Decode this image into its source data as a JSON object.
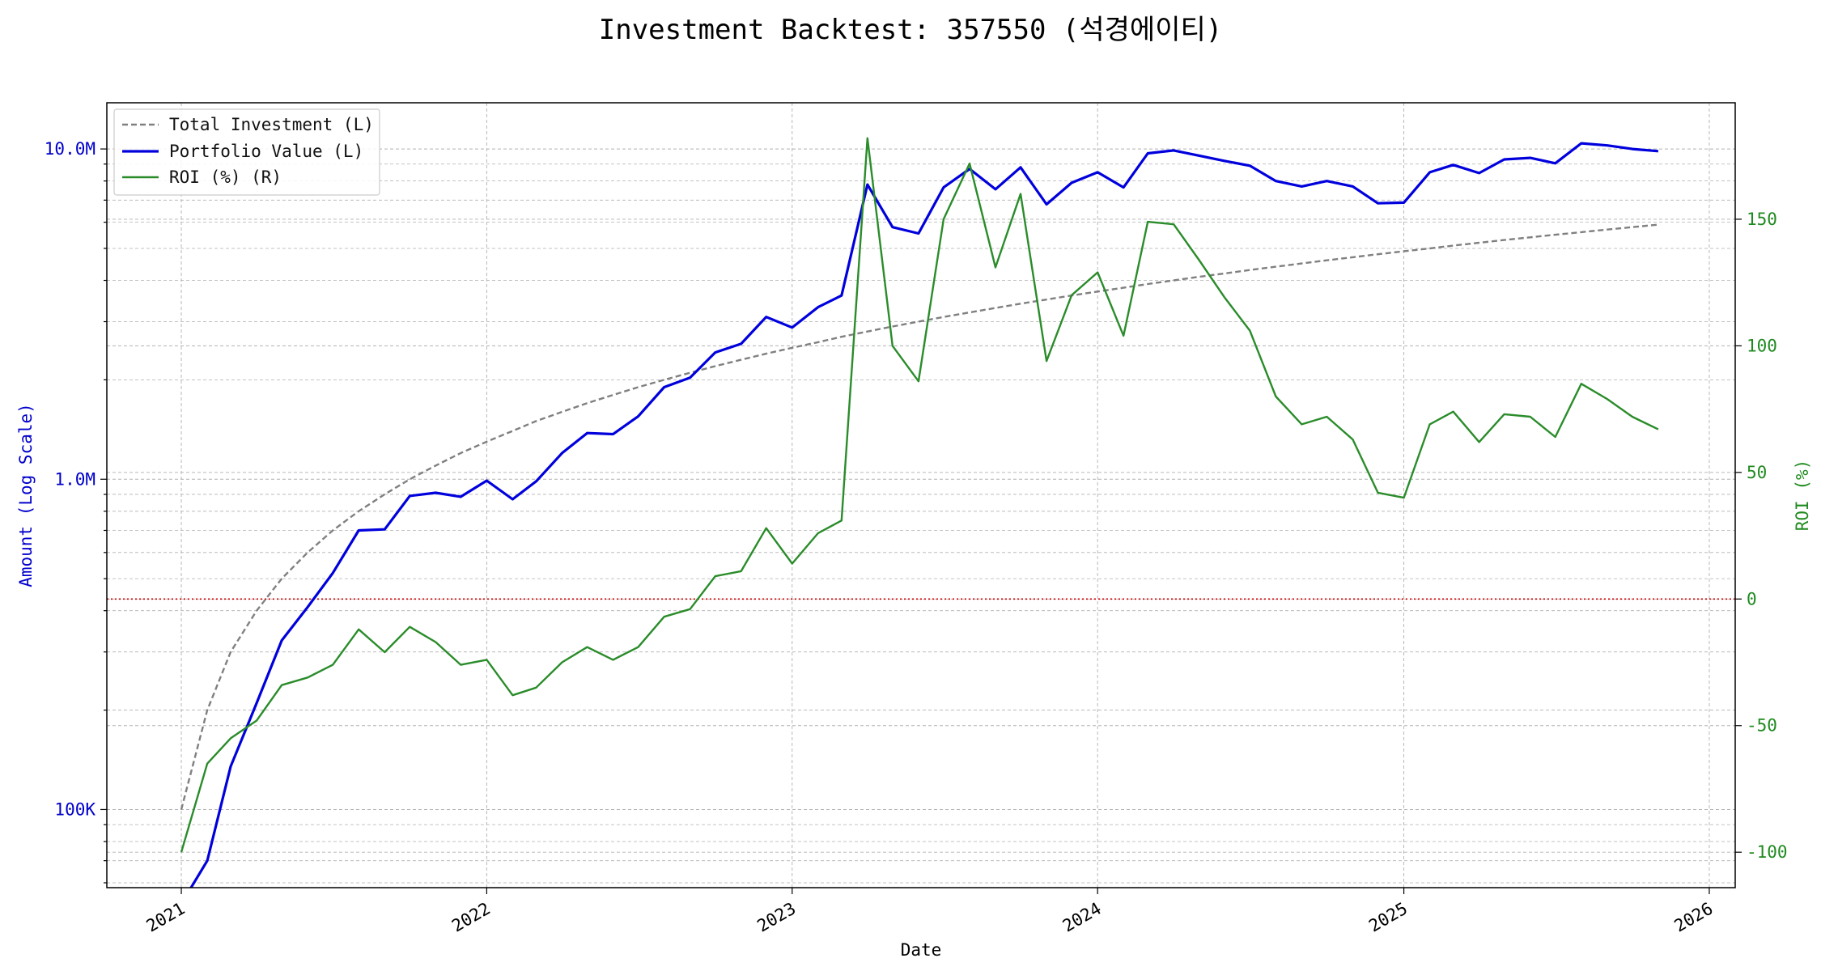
{
  "chart_data": {
    "type": "line",
    "title": "Investment Backtest: 357550 (석경에이티)",
    "xlabel": "Date",
    "ylabel_left": "Amount (Log Scale)",
    "ylabel_right": "ROI (%)",
    "x_ticks": [
      "2021",
      "2022",
      "2023",
      "2024",
      "2025",
      "2026"
    ],
    "y_left_scale": "log",
    "y_left_ticks": [
      {
        "value": 100000,
        "label": "100K"
      },
      {
        "value": 1000000,
        "label": "1.0M"
      },
      {
        "value": 10000000,
        "label": "10.0M"
      }
    ],
    "y_left_range": [
      58000,
      13800000
    ],
    "y_right_ticks": [
      -100,
      -50,
      0,
      50,
      100,
      150
    ],
    "y_right_range": [
      -114,
      196
    ],
    "x_range": [
      "2020-10-04",
      "2026-02-01"
    ],
    "grid": true,
    "legend_position": "top-left",
    "reference_line": {
      "axis": "right",
      "value": 0,
      "style": "dotted",
      "color": "#cc0000"
    },
    "colors": {
      "total_investment": "#808080",
      "portfolio_value": "#0000dd",
      "roi": "#2a8c2a",
      "left_axis": "#0000cc",
      "right_axis": "#1f8a1f",
      "grid": "#b0b0b0"
    },
    "series": [
      {
        "name": "Total Investment (L)",
        "axis": "left",
        "style": "dashed",
        "points": [
          [
            "2021-01-01",
            100000
          ],
          [
            "2021-02-01",
            200000
          ],
          [
            "2021-03-01",
            300000
          ],
          [
            "2021-04-01",
            400000
          ],
          [
            "2021-05-01",
            500000
          ],
          [
            "2021-06-01",
            600000
          ],
          [
            "2021-07-01",
            700000
          ],
          [
            "2021-08-01",
            800000
          ],
          [
            "2021-09-01",
            900000
          ],
          [
            "2021-10-01",
            1000000
          ],
          [
            "2021-11-01",
            1100000
          ],
          [
            "2021-12-01",
            1200000
          ],
          [
            "2022-01-01",
            1300000
          ],
          [
            "2022-02-01",
            1400000
          ],
          [
            "2022-03-01",
            1500000
          ],
          [
            "2022-04-01",
            1600000
          ],
          [
            "2022-05-01",
            1700000
          ],
          [
            "2022-06-01",
            1800000
          ],
          [
            "2022-07-01",
            1900000
          ],
          [
            "2022-08-01",
            2000000
          ],
          [
            "2022-09-01",
            2100000
          ],
          [
            "2022-10-01",
            2200000
          ],
          [
            "2022-11-01",
            2300000
          ],
          [
            "2022-12-01",
            2400000
          ],
          [
            "2023-01-01",
            2500000
          ],
          [
            "2023-02-01",
            2600000
          ],
          [
            "2023-03-01",
            2700000
          ],
          [
            "2023-04-01",
            2800000
          ],
          [
            "2023-05-01",
            2900000
          ],
          [
            "2023-06-01",
            3000000
          ],
          [
            "2023-07-01",
            3100000
          ],
          [
            "2023-08-01",
            3200000
          ],
          [
            "2023-09-01",
            3300000
          ],
          [
            "2023-10-01",
            3400000
          ],
          [
            "2023-11-01",
            3500000
          ],
          [
            "2023-12-01",
            3600000
          ],
          [
            "2024-01-01",
            3700000
          ],
          [
            "2024-02-01",
            3800000
          ],
          [
            "2024-03-01",
            3900000
          ],
          [
            "2024-04-01",
            4000000
          ],
          [
            "2024-05-01",
            4100000
          ],
          [
            "2024-06-01",
            4200000
          ],
          [
            "2024-07-01",
            4300000
          ],
          [
            "2024-08-01",
            4400000
          ],
          [
            "2024-09-01",
            4500000
          ],
          [
            "2024-10-01",
            4600000
          ],
          [
            "2024-11-01",
            4700000
          ],
          [
            "2024-12-01",
            4800000
          ],
          [
            "2025-01-01",
            4900000
          ],
          [
            "2025-02-01",
            5000000
          ],
          [
            "2025-03-01",
            5100000
          ],
          [
            "2025-04-01",
            5200000
          ],
          [
            "2025-05-01",
            5300000
          ],
          [
            "2025-06-01",
            5400000
          ],
          [
            "2025-07-01",
            5500000
          ],
          [
            "2025-08-01",
            5600000
          ],
          [
            "2025-09-01",
            5700000
          ],
          [
            "2025-10-01",
            5800000
          ],
          [
            "2025-11-01",
            5900000
          ]
        ]
      },
      {
        "name": "Portfolio Value (L)",
        "axis": "left",
        "style": "solid",
        "points": [
          [
            "2021-01-01",
            0
          ],
          [
            "2021-02-01",
            70000
          ],
          [
            "2021-03-01",
            135000
          ],
          [
            "2021-04-01",
            210000
          ],
          [
            "2021-05-01",
            325000
          ],
          [
            "2021-06-01",
            410000
          ],
          [
            "2021-07-01",
            520000
          ],
          [
            "2021-08-01",
            700000
          ],
          [
            "2021-09-01",
            705000
          ],
          [
            "2021-10-01",
            890000
          ],
          [
            "2021-11-01",
            910000
          ],
          [
            "2021-12-01",
            885000
          ],
          [
            "2022-01-01",
            990000
          ],
          [
            "2022-02-01",
            870000
          ],
          [
            "2022-03-01",
            985000
          ],
          [
            "2022-04-01",
            1200000
          ],
          [
            "2022-05-01",
            1380000
          ],
          [
            "2022-06-01",
            1370000
          ],
          [
            "2022-07-01",
            1550000
          ],
          [
            "2022-08-01",
            1900000
          ],
          [
            "2022-09-01",
            2030000
          ],
          [
            "2022-10-01",
            2420000
          ],
          [
            "2022-11-01",
            2570000
          ],
          [
            "2022-12-01",
            3100000
          ],
          [
            "2023-01-01",
            2880000
          ],
          [
            "2023-02-01",
            3320000
          ],
          [
            "2023-03-01",
            3600000
          ],
          [
            "2023-04-01",
            7800000
          ],
          [
            "2023-05-01",
            5800000
          ],
          [
            "2023-06-01",
            5550000
          ],
          [
            "2023-07-01",
            7650000
          ],
          [
            "2023-08-01",
            8700000
          ],
          [
            "2023-09-01",
            7550000
          ],
          [
            "2023-10-01",
            8800000
          ],
          [
            "2023-11-01",
            6800000
          ],
          [
            "2023-12-01",
            7900000
          ],
          [
            "2024-01-01",
            8500000
          ],
          [
            "2024-02-01",
            7650000
          ],
          [
            "2024-03-01",
            9700000
          ],
          [
            "2024-04-01",
            9900000
          ],
          [
            "2024-05-01",
            9550000
          ],
          [
            "2024-06-01",
            9200000
          ],
          [
            "2024-07-01",
            8900000
          ],
          [
            "2024-08-01",
            8000000
          ],
          [
            "2024-09-01",
            7700000
          ],
          [
            "2024-10-01",
            8000000
          ],
          [
            "2024-11-01",
            7700000
          ],
          [
            "2024-12-01",
            6850000
          ],
          [
            "2025-01-01",
            6880000
          ],
          [
            "2025-02-01",
            8500000
          ],
          [
            "2025-03-01",
            8950000
          ],
          [
            "2025-04-01",
            8450000
          ],
          [
            "2025-05-01",
            9300000
          ],
          [
            "2025-06-01",
            9400000
          ],
          [
            "2025-07-01",
            9050000
          ],
          [
            "2025-08-01",
            10400000
          ],
          [
            "2025-09-01",
            10250000
          ],
          [
            "2025-10-01",
            10000000
          ],
          [
            "2025-11-01",
            9850000
          ]
        ]
      },
      {
        "name": "ROI (%) (R)",
        "axis": "right",
        "style": "solid",
        "points": [
          [
            "2021-01-01",
            -100
          ],
          [
            "2021-02-01",
            -65
          ],
          [
            "2021-03-01",
            -55
          ],
          [
            "2021-04-01",
            -48
          ],
          [
            "2021-05-01",
            -34
          ],
          [
            "2021-06-01",
            -31
          ],
          [
            "2021-07-01",
            -26
          ],
          [
            "2021-08-01",
            -12
          ],
          [
            "2021-09-01",
            -21
          ],
          [
            "2021-10-01",
            -11
          ],
          [
            "2021-11-01",
            -17
          ],
          [
            "2021-12-01",
            -26
          ],
          [
            "2022-01-01",
            -24
          ],
          [
            "2022-02-01",
            -38
          ],
          [
            "2022-03-01",
            -35
          ],
          [
            "2022-04-01",
            -25
          ],
          [
            "2022-05-01",
            -19
          ],
          [
            "2022-06-01",
            -24
          ],
          [
            "2022-07-01",
            -19
          ],
          [
            "2022-08-01",
            -7
          ],
          [
            "2022-09-01",
            -4
          ],
          [
            "2022-10-01",
            9
          ],
          [
            "2022-11-01",
            11
          ],
          [
            "2022-12-01",
            28
          ],
          [
            "2023-01-01",
            14
          ],
          [
            "2023-02-01",
            26
          ],
          [
            "2023-03-01",
            31
          ],
          [
            "2023-04-01",
            182
          ],
          [
            "2023-05-01",
            100
          ],
          [
            "2023-06-01",
            86
          ],
          [
            "2023-07-01",
            150
          ],
          [
            "2023-08-01",
            172
          ],
          [
            "2023-09-01",
            131
          ],
          [
            "2023-10-01",
            160
          ],
          [
            "2023-11-01",
            94
          ],
          [
            "2023-12-01",
            120
          ],
          [
            "2024-01-01",
            129
          ],
          [
            "2024-02-01",
            104
          ],
          [
            "2024-03-01",
            149
          ],
          [
            "2024-04-01",
            148
          ],
          [
            "2024-05-01",
            134
          ],
          [
            "2024-06-01",
            119
          ],
          [
            "2024-07-01",
            106
          ],
          [
            "2024-08-01",
            80
          ],
          [
            "2024-09-01",
            69
          ],
          [
            "2024-10-01",
            72
          ],
          [
            "2024-11-01",
            63
          ],
          [
            "2024-12-01",
            42
          ],
          [
            "2025-01-01",
            40
          ],
          [
            "2025-02-01",
            69
          ],
          [
            "2025-03-01",
            74
          ],
          [
            "2025-04-01",
            62
          ],
          [
            "2025-05-01",
            73
          ],
          [
            "2025-06-01",
            72
          ],
          [
            "2025-07-01",
            64
          ],
          [
            "2025-08-01",
            85
          ],
          [
            "2025-09-01",
            79
          ],
          [
            "2025-10-01",
            72
          ],
          [
            "2025-11-01",
            67
          ]
        ]
      }
    ]
  }
}
